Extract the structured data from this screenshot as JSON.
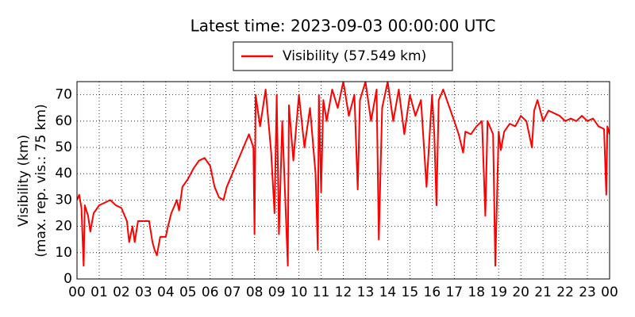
{
  "chart_data": {
    "type": "line",
    "title": "Latest time: 2023-09-03 00:00:00 UTC",
    "y_label": [
      "Visibility (km)",
      "(max. rep. vis.: 75 km)"
    ],
    "x": [
      0.0,
      0.1,
      0.2,
      0.3,
      0.35,
      0.5,
      0.6,
      0.75,
      1.0,
      1.25,
      1.5,
      1.75,
      2.0,
      2.25,
      2.35,
      2.5,
      2.6,
      2.75,
      3.0,
      3.25,
      3.4,
      3.5,
      3.6,
      3.75,
      4.0,
      4.1,
      4.25,
      4.5,
      4.6,
      4.75,
      5.0,
      5.25,
      5.5,
      5.75,
      6.0,
      6.2,
      6.4,
      6.6,
      6.75,
      7.0,
      7.25,
      7.5,
      7.75,
      7.95,
      8.0,
      8.05,
      8.25,
      8.5,
      8.75,
      8.9,
      9.0,
      9.1,
      9.25,
      9.5,
      9.55,
      9.75,
      10.0,
      10.25,
      10.5,
      10.75,
      10.85,
      10.9,
      11.0,
      11.1,
      11.25,
      11.5,
      11.75,
      12.0,
      12.25,
      12.5,
      12.65,
      12.75,
      13.0,
      13.25,
      13.5,
      13.6,
      13.75,
      14.0,
      14.25,
      14.5,
      14.75,
      15.0,
      15.25,
      15.5,
      15.75,
      16.0,
      16.1,
      16.2,
      16.3,
      16.5,
      16.75,
      17.0,
      17.2,
      17.4,
      17.5,
      17.75,
      18.0,
      18.25,
      18.4,
      18.5,
      18.75,
      18.85,
      19.0,
      19.1,
      19.25,
      19.5,
      19.75,
      20.0,
      20.25,
      20.5,
      20.6,
      20.75,
      21.0,
      21.25,
      21.5,
      21.75,
      22.0,
      22.25,
      22.5,
      22.75,
      23.0,
      23.25,
      23.5,
      23.75,
      23.85,
      23.9,
      24.0
    ],
    "series": [
      {
        "name": "Visibility (57.549 km)",
        "color": "#ff0000",
        "values": [
          30,
          32,
          27,
          5,
          28,
          24,
          18,
          25,
          28,
          29,
          30,
          28,
          27,
          22,
          14,
          20,
          14,
          22,
          22,
          22,
          14,
          11,
          9,
          16,
          16,
          20,
          25,
          30,
          26,
          35,
          38,
          42,
          45,
          46,
          43,
          35,
          31,
          30,
          35,
          40,
          45,
          50,
          55,
          50,
          17,
          70,
          58,
          72,
          48,
          25,
          70,
          17,
          60,
          5,
          66,
          45,
          70,
          50,
          65,
          40,
          11,
          70,
          33,
          68,
          60,
          72,
          65,
          75,
          62,
          70,
          34,
          68,
          75,
          60,
          72,
          15,
          65,
          75,
          60,
          72,
          55,
          70,
          62,
          68,
          35,
          70,
          55,
          28,
          68,
          72,
          66,
          60,
          55,
          48,
          56,
          55,
          58,
          60,
          24,
          60,
          55,
          5,
          56,
          49,
          56,
          59,
          58,
          62,
          60,
          50,
          64,
          68,
          60,
          64,
          63,
          62,
          60,
          61,
          60,
          62,
          60,
          61,
          58,
          57,
          32,
          58,
          55
        ]
      }
    ],
    "xlim": [
      0,
      24
    ],
    "xticks": [
      {
        "value": 0,
        "label": "00"
      },
      {
        "value": 1,
        "label": "01"
      },
      {
        "value": 2,
        "label": "02"
      },
      {
        "value": 3,
        "label": "03"
      },
      {
        "value": 4,
        "label": "04"
      },
      {
        "value": 5,
        "label": "05"
      },
      {
        "value": 6,
        "label": "06"
      },
      {
        "value": 7,
        "label": "07"
      },
      {
        "value": 8,
        "label": "08"
      },
      {
        "value": 9,
        "label": "09"
      },
      {
        "value": 10,
        "label": "10"
      },
      {
        "value": 11,
        "label": "11"
      },
      {
        "value": 12,
        "label": "12"
      },
      {
        "value": 13,
        "label": "13"
      },
      {
        "value": 14,
        "label": "14"
      },
      {
        "value": 15,
        "label": "15"
      },
      {
        "value": 16,
        "label": "16"
      },
      {
        "value": 17,
        "label": "17"
      },
      {
        "value": 18,
        "label": "18"
      },
      {
        "value": 19,
        "label": "19"
      },
      {
        "value": 20,
        "label": "20"
      },
      {
        "value": 21,
        "label": "21"
      },
      {
        "value": 22,
        "label": "22"
      },
      {
        "value": 23,
        "label": "23"
      },
      {
        "value": 24,
        "label": "00"
      }
    ],
    "ylim": [
      0,
      75
    ],
    "yticks": [
      0,
      10,
      20,
      30,
      40,
      50,
      60,
      70
    ],
    "grid": true
  }
}
